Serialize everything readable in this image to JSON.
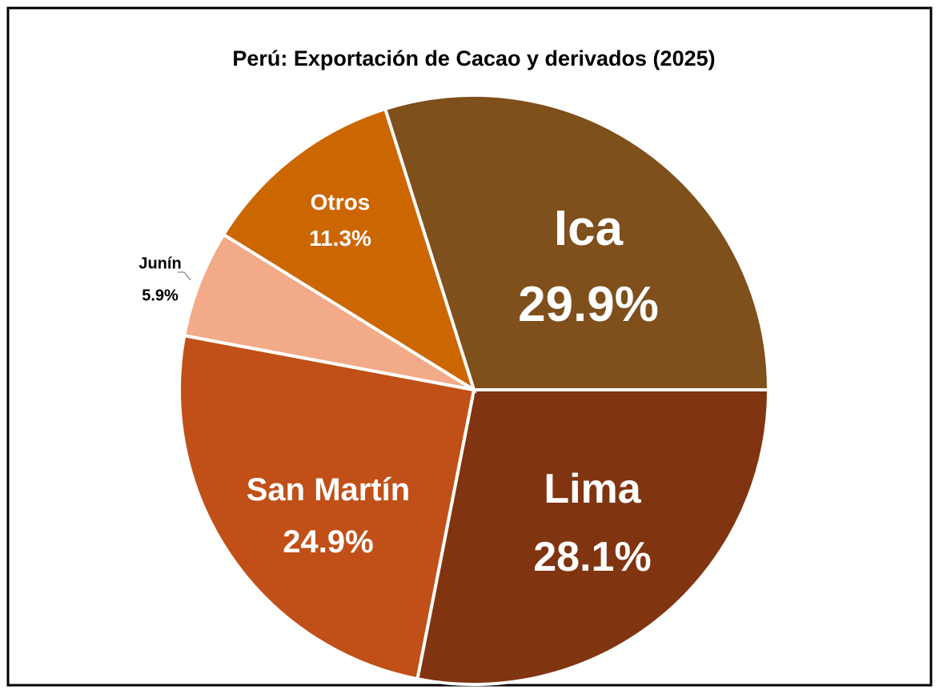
{
  "chart_data": {
    "type": "pie",
    "title": "Perú: Exportación de Cacao y derivados (2025)",
    "categories": [
      "Ica",
      "Lima",
      "San Martín",
      "Junín",
      "Otros"
    ],
    "values": [
      29.9,
      28.1,
      24.9,
      5.9,
      11.3
    ],
    "value_labels": [
      "29.9%",
      "28.1%",
      "24.9%",
      "5.9%",
      "11.3%"
    ],
    "colors": [
      "#7f4f1c",
      "#803410",
      "#c05018",
      "#f2aa88",
      "#cc6600"
    ]
  }
}
